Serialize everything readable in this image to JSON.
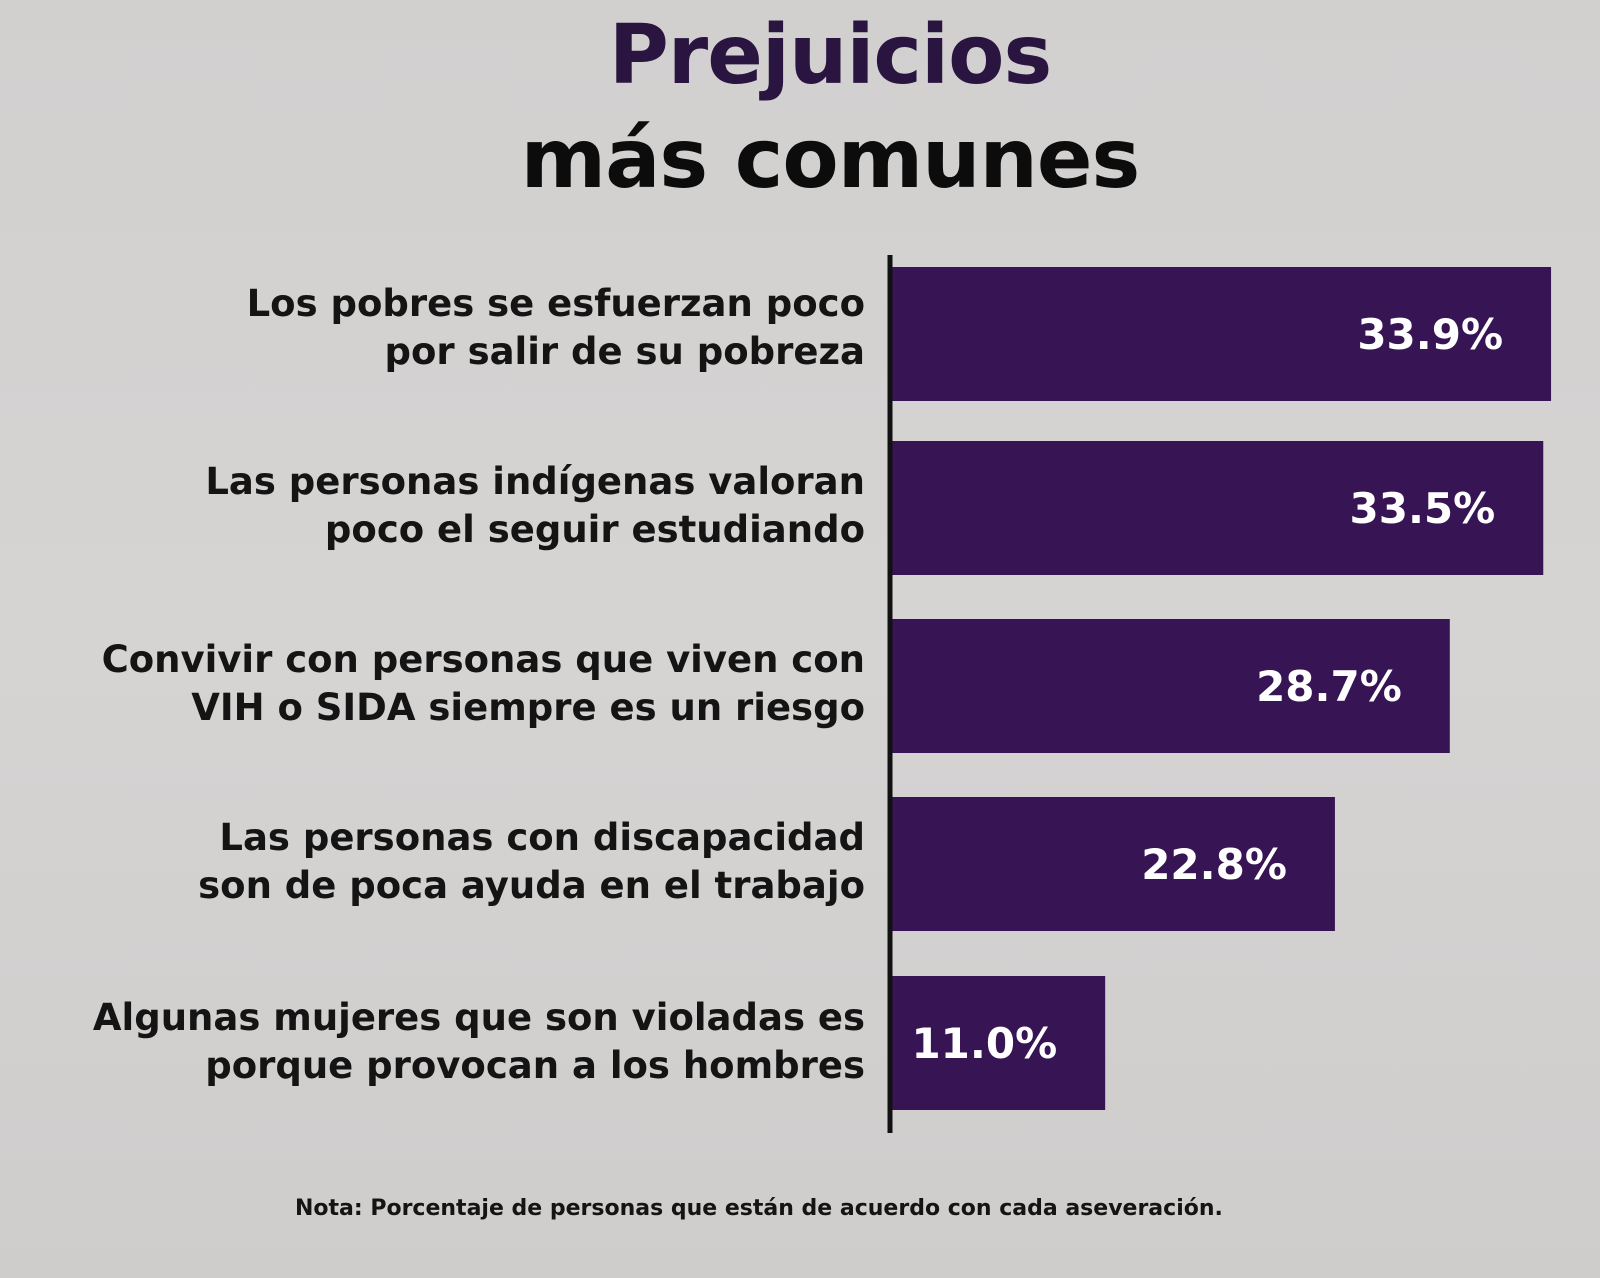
{
  "colors": {
    "bar": "#371454",
    "axis": "#111111",
    "background": "#d3d1d0"
  },
  "chart_data": {
    "type": "bar",
    "orientation": "horizontal",
    "title": "Prejuicios",
    "subtitle": "más comunes",
    "categories": [
      "Los pobres se esfuerzan poco\npor salir de su pobreza",
      "Las personas indígenas valoran\npoco el seguir estudiando",
      "Convivir con personas que viven con\nVIH o SIDA siempre es un riesgo",
      "Las personas con discapacidad\nson de poca ayuda en el trabajo",
      "Algunas mujeres que son violadas es\nporque provocan a los hombres"
    ],
    "values": [
      33.9,
      33.5,
      28.7,
      22.8,
      11.0
    ],
    "value_labels": [
      "33.9%",
      "33.5%",
      "28.7%",
      "22.8%",
      "11.0%"
    ],
    "xlim": [
      0,
      34
    ],
    "grid": false,
    "legend": "none",
    "note": "Nota: Porcentaje de personas que están de acuerdo con cada aseveración."
  }
}
